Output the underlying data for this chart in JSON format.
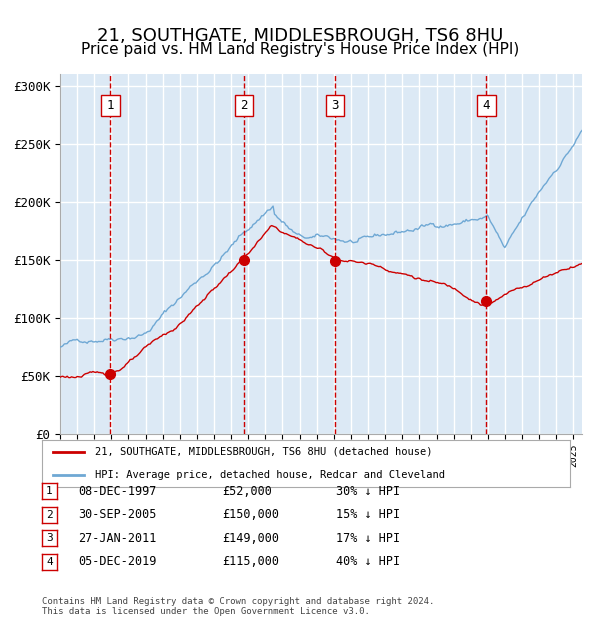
{
  "title": "21, SOUTHGATE, MIDDLESBROUGH, TS6 8HU",
  "subtitle": "Price paid vs. HM Land Registry's House Price Index (HPI)",
  "title_fontsize": 13,
  "subtitle_fontsize": 11,
  "ylim": [
    0,
    310000
  ],
  "yticks": [
    0,
    50000,
    100000,
    150000,
    200000,
    250000,
    300000
  ],
  "ytick_labels": [
    "£0",
    "£50K",
    "£100K",
    "£150K",
    "£200K",
    "£250K",
    "£300K"
  ],
  "plot_bg_color": "#dce9f5",
  "grid_color": "#ffffff",
  "hpi_line_color": "#6fa8d4",
  "sale_line_color": "#cc0000",
  "sale_dot_color": "#cc0000",
  "vline_color": "#cc0000",
  "sale_label": "21, SOUTHGATE, MIDDLESBROUGH, TS6 8HU (detached house)",
  "hpi_label": "HPI: Average price, detached house, Redcar and Cleveland",
  "transactions": [
    {
      "num": 1,
      "date": "08-DEC-1997",
      "price": 52000,
      "x_year": 1997.93,
      "pct": "30%",
      "dir": "↓"
    },
    {
      "num": 2,
      "date": "30-SEP-2005",
      "price": 150000,
      "x_year": 2005.75,
      "pct": "15%",
      "dir": "↓"
    },
    {
      "num": 3,
      "date": "27-JAN-2011",
      "price": 149000,
      "x_year": 2011.07,
      "pct": "17%",
      "dir": "↓"
    },
    {
      "num": 4,
      "date": "05-DEC-2019",
      "price": 115000,
      "x_year": 2019.92,
      "pct": "40%",
      "dir": "↓"
    }
  ],
  "footer_line1": "Contains HM Land Registry data © Crown copyright and database right 2024.",
  "footer_line2": "This data is licensed under the Open Government Licence v3.0.",
  "xmin": 1995.0,
  "xmax": 2025.5
}
